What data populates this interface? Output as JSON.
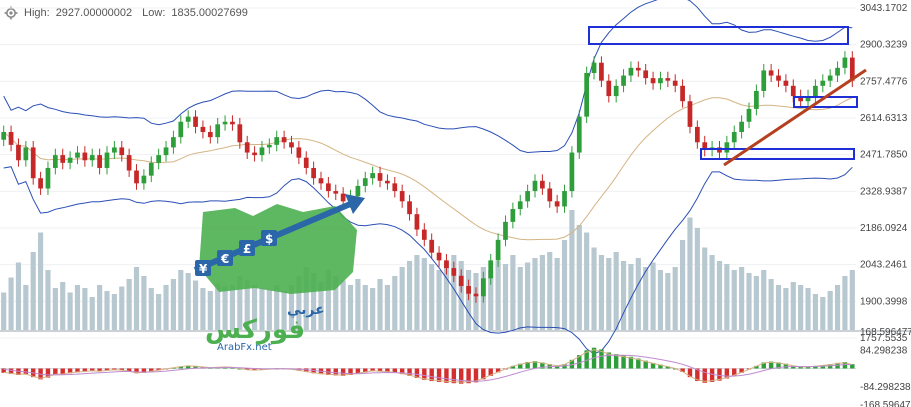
{
  "header": {
    "high_label": "High:",
    "high_value": "2927.00000002",
    "low_label": "Low:",
    "low_value": "1835.00027699"
  },
  "logo": {
    "arabic_top": "عربي",
    "arabic_main": "فوركس",
    "site": "ArabFx.net",
    "currency_glyphs": [
      "¥",
      "€",
      "£",
      "$"
    ]
  },
  "colors": {
    "up_candle": "#2e9e3a",
    "down_candle": "#c62828",
    "volume": "#b8c8d0",
    "bollinger": "#2b4fb5",
    "middle_band": "#d4b483",
    "trendline": "#b5401f",
    "highlight_box": "#1e2fd6",
    "macd_up": "#2e9e3a",
    "macd_down": "#d32f2f",
    "logo_green": "#4caf50",
    "logo_blue": "#2a66a8"
  },
  "chart_data": {
    "type": "candlestick",
    "price_axis_ticks": [
      "3043.1702",
      "2900.3239",
      "2757.4776",
      "2614.6313",
      "2471.7850",
      "2328.9387",
      "2186.0924",
      "2043.2461",
      "1900.3998",
      "1757.5535"
    ],
    "price_tick_values": [
      3043.1702,
      2900.3239,
      2757.4776,
      2614.6313,
      2471.785,
      2328.9387,
      2186.0924,
      2043.2461,
      1900.3998,
      1757.5535
    ],
    "indicator_axis_ticks": [
      "168.596477",
      "84.298238",
      "-84.298238",
      "-168.59647"
    ],
    "indicator_tick_values": [
      168.596477,
      84.298238,
      -84.298238,
      -168.59647
    ],
    "price_range": [
      1757.5535,
      3043.1702
    ],
    "indicator_range": [
      -168.59647,
      168.596477
    ],
    "close": [
      2560,
      2510,
      2450,
      2500,
      2380,
      2340,
      2420,
      2470,
      2440,
      2460,
      2480,
      2450,
      2470,
      2420,
      2480,
      2500,
      2470,
      2410,
      2360,
      2390,
      2440,
      2470,
      2500,
      2540,
      2600,
      2620,
      2580,
      2560,
      2540,
      2590,
      2600,
      2590,
      2520,
      2480,
      2470,
      2500,
      2510,
      2540,
      2520,
      2500,
      2460,
      2420,
      2380,
      2360,
      2330,
      2320,
      2290,
      2310,
      2350,
      2380,
      2400,
      2370,
      2360,
      2330,
      2290,
      2240,
      2180,
      2140,
      2090,
      2060,
      2030,
      2000,
      1960,
      1930,
      1920,
      1990,
      2060,
      2140,
      2210,
      2260,
      2290,
      2330,
      2370,
      2340,
      2290,
      2270,
      2330,
      2480,
      2620,
      2790,
      2830,
      2760,
      2700,
      2740,
      2780,
      2810,
      2800,
      2770,
      2750,
      2770,
      2760,
      2740,
      2680,
      2580,
      2520,
      2490,
      2500,
      2480,
      2520,
      2560,
      2600,
      2650,
      2720,
      2800,
      2780,
      2760,
      2740,
      2700,
      2680,
      2700,
      2740,
      2760,
      2780,
      2810,
      2850,
      2760
    ],
    "volume_pct": [
      0.25,
      0.35,
      0.45,
      0.3,
      0.52,
      0.65,
      0.4,
      0.28,
      0.32,
      0.25,
      0.3,
      0.28,
      0.22,
      0.3,
      0.26,
      0.24,
      0.29,
      0.34,
      0.42,
      0.36,
      0.28,
      0.24,
      0.3,
      0.34,
      0.4,
      0.38,
      0.33,
      0.28,
      0.26,
      0.31,
      0.29,
      0.3,
      0.36,
      0.33,
      0.3,
      0.28,
      0.27,
      0.3,
      0.26,
      0.3,
      0.36,
      0.42,
      0.38,
      0.32,
      0.4,
      0.36,
      0.33,
      0.3,
      0.34,
      0.3,
      0.28,
      0.34,
      0.3,
      0.36,
      0.42,
      0.46,
      0.5,
      0.48,
      0.44,
      0.4,
      0.46,
      0.5,
      0.46,
      0.4,
      0.38,
      0.42,
      0.4,
      0.46,
      0.44,
      0.5,
      0.42,
      0.45,
      0.48,
      0.5,
      0.52,
      0.48,
      0.6,
      0.8,
      0.7,
      0.65,
      0.55,
      0.5,
      0.48,
      0.52,
      0.46,
      0.44,
      0.48,
      0.42,
      0.45,
      0.4,
      0.38,
      0.42,
      0.6,
      0.75,
      0.68,
      0.55,
      0.5,
      0.46,
      0.44,
      0.4,
      0.42,
      0.38,
      0.36,
      0.4,
      0.34,
      0.3,
      0.28,
      0.32,
      0.3,
      0.28,
      0.24,
      0.22,
      0.26,
      0.3,
      0.36,
      0.4
    ],
    "macd_hist": [
      -20,
      -25,
      -30,
      -28,
      -40,
      -50,
      -42,
      -30,
      -28,
      -22,
      -18,
      -15,
      -12,
      -14,
      -10,
      -6,
      -8,
      -14,
      -22,
      -20,
      -14,
      -8,
      -2,
      4,
      10,
      14,
      12,
      8,
      4,
      6,
      8,
      6,
      0,
      -6,
      -8,
      -6,
      -4,
      0,
      -2,
      -4,
      -10,
      -16,
      -22,
      -26,
      -30,
      -32,
      -34,
      -30,
      -24,
      -18,
      -12,
      -14,
      -16,
      -20,
      -26,
      -34,
      -44,
      -52,
      -58,
      -62,
      -66,
      -68,
      -70,
      -68,
      -64,
      -50,
      -34,
      -18,
      -2,
      12,
      22,
      30,
      34,
      28,
      20,
      14,
      20,
      40,
      62,
      84,
      96,
      88,
      74,
      66,
      60,
      54,
      46,
      36,
      26,
      18,
      10,
      0,
      -16,
      -40,
      -58,
      -66,
      -62,
      -56,
      -46,
      -34,
      -20,
      -4,
      12,
      28,
      32,
      28,
      22,
      14,
      8,
      8,
      12,
      16,
      20,
      26,
      30,
      20
    ]
  }
}
